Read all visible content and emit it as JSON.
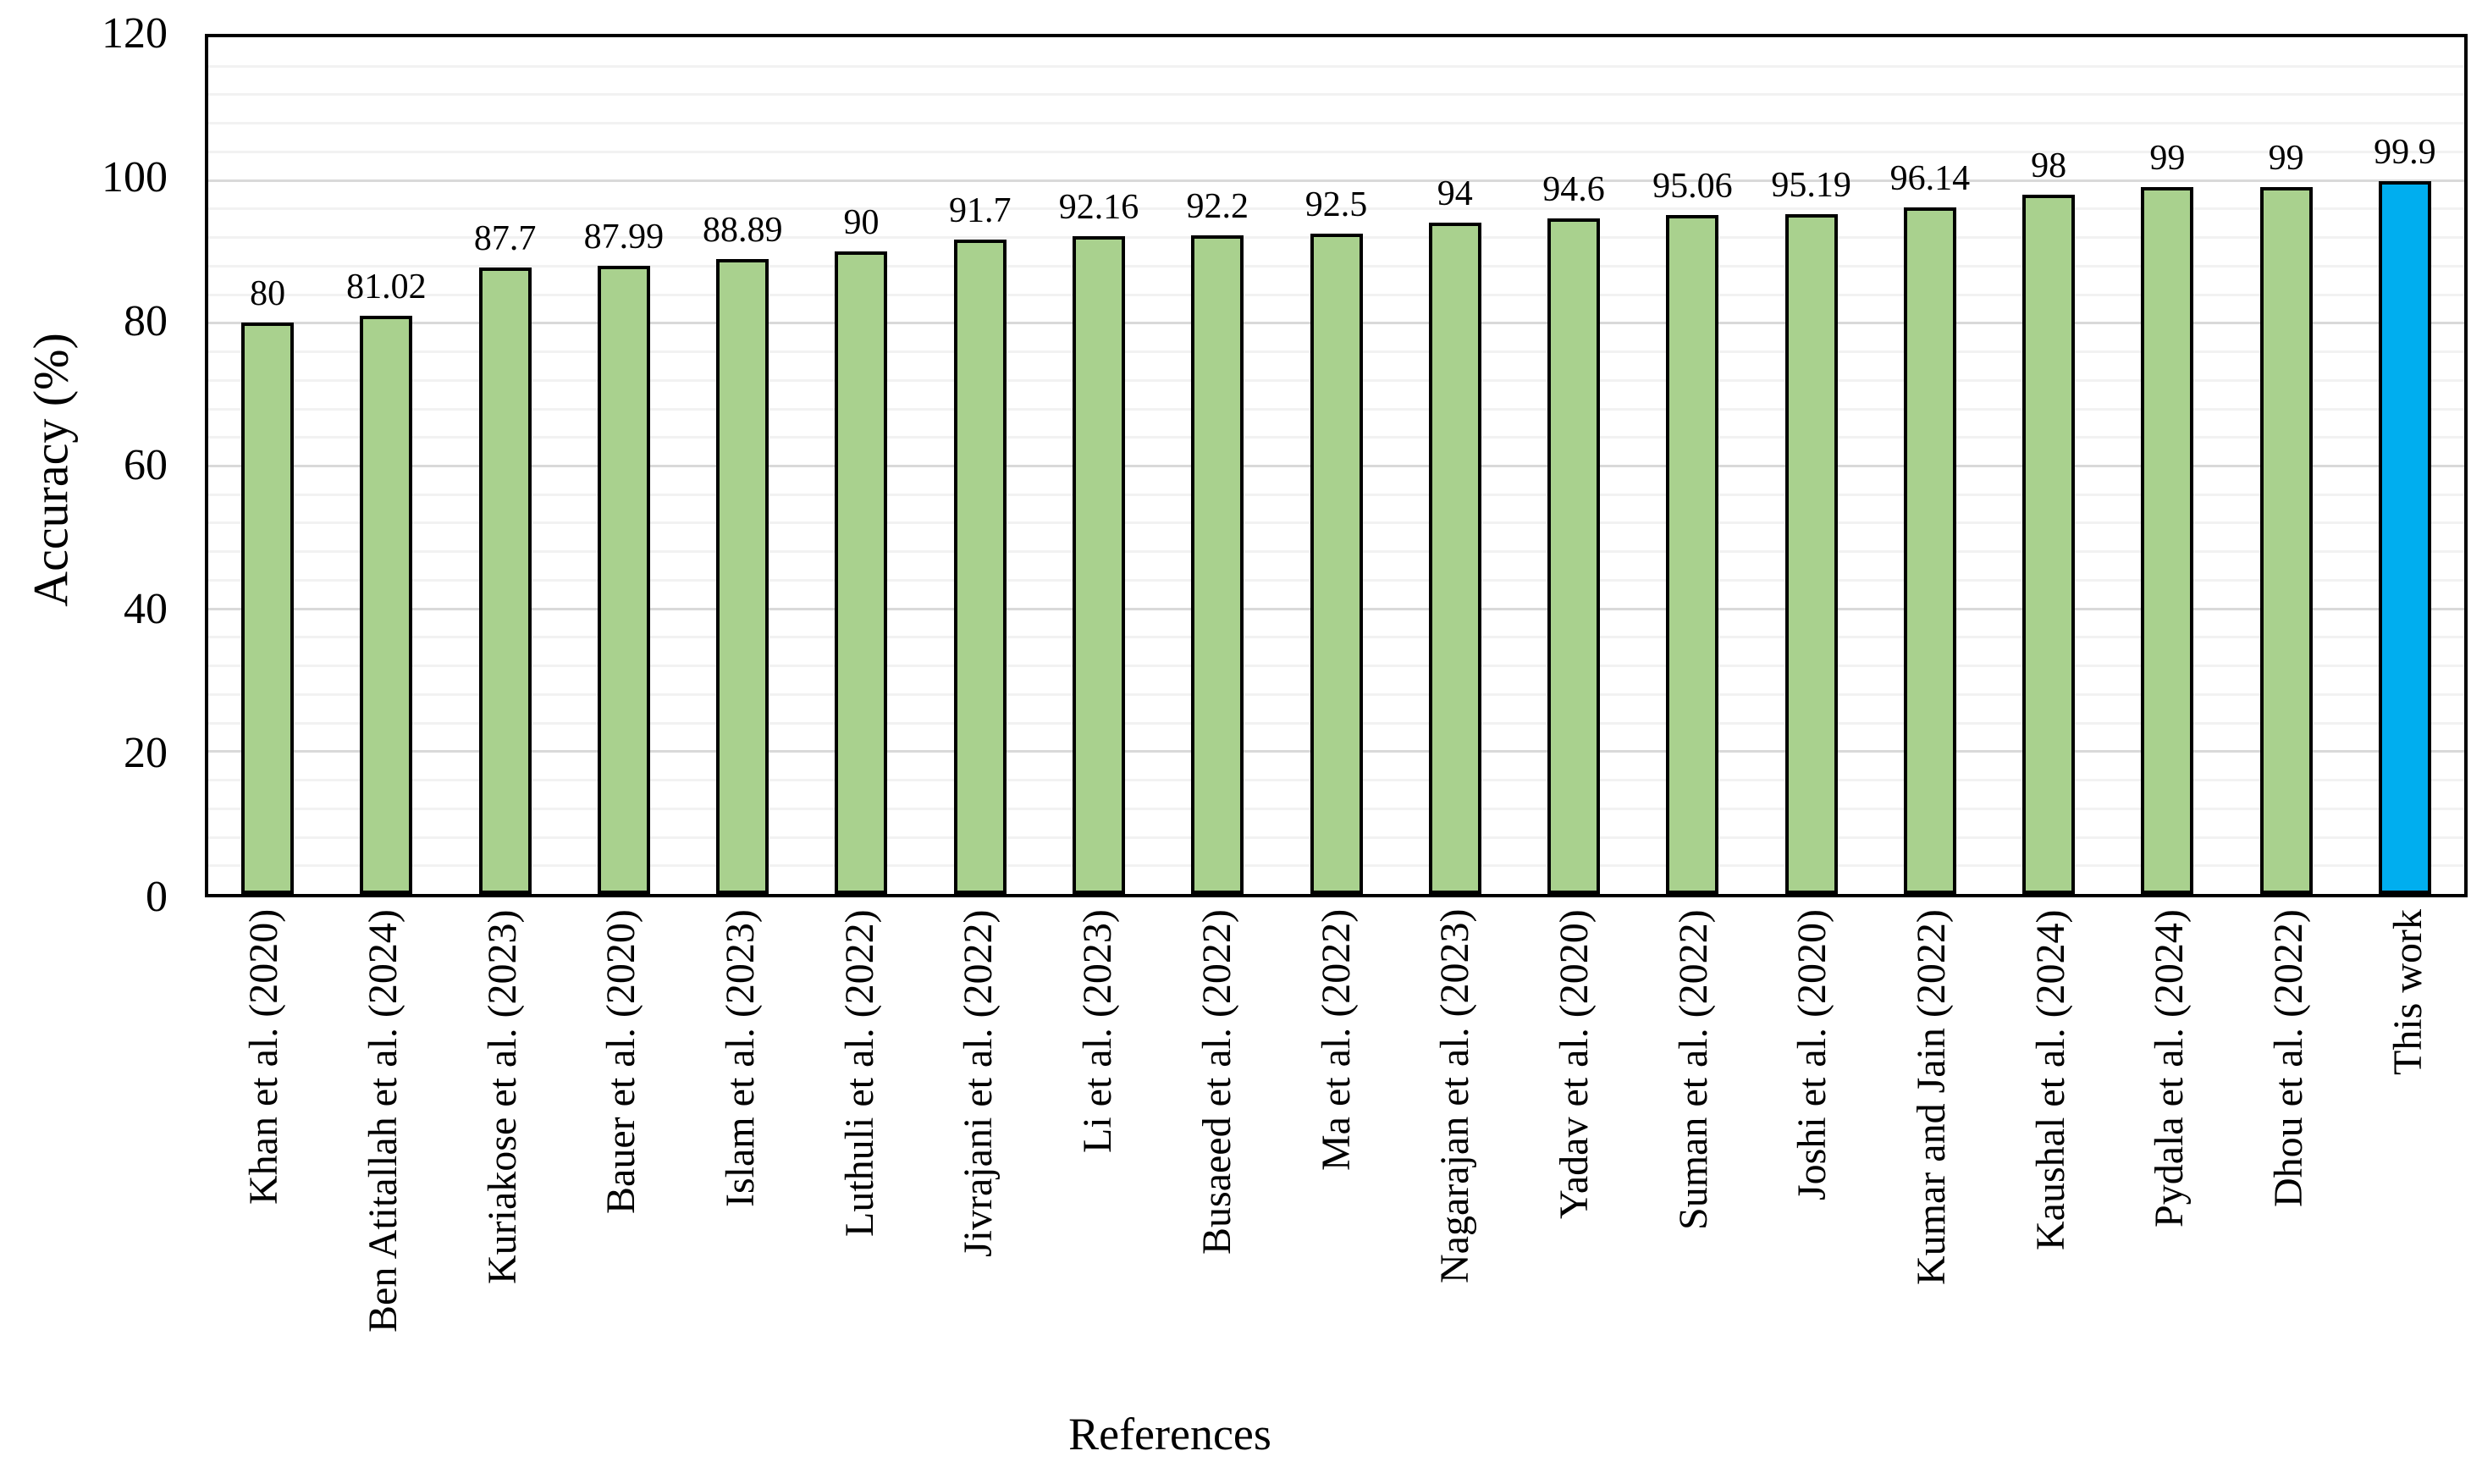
{
  "chart_data": {
    "type": "bar",
    "title": "",
    "xlabel": "References",
    "ylabel": "Accuracy (%)",
    "ylim": [
      0,
      120
    ],
    "yticks": [
      0,
      20,
      40,
      60,
      80,
      100,
      120
    ],
    "minor_grid_step": 4,
    "major_grid_step": 20,
    "grid": "on",
    "legend": "none",
    "categories": [
      "Khan et al. (2020)",
      "Ben Atitallah et al. (2024)",
      "Kuriakose et al. (2023)",
      "Bauer et al. (2020)",
      "Islam et al. (2023)",
      "Luthuli et al. (2022)",
      "Jivrajani et al. (2022)",
      "Li et al. (2023)",
      "Busaeed et al. (2022)",
      "Ma et al. (2022)",
      "Nagarajan et al. (2023)",
      "Yadav et al. (2020)",
      "Suman et al. (2022)",
      "Joshi et al. (2020)",
      "Kumar and Jain (2022)",
      "Kaushal et al. (2024)",
      "Pydala et al. (2024)",
      "Dhou et al. (2022)",
      "This work"
    ],
    "values": [
      80,
      81.02,
      87.7,
      87.99,
      88.89,
      90,
      91.7,
      92.16,
      92.2,
      92.5,
      94,
      94.6,
      95.06,
      95.19,
      96.14,
      98,
      99,
      99,
      99.9
    ],
    "value_labels": [
      "80",
      "81.02",
      "87.7",
      "87.99",
      "88.89",
      "90",
      "91.7",
      "92.16",
      "92.2",
      "92.5",
      "94",
      "94.6",
      "95.06",
      "95.19",
      "96.14",
      "98",
      "99",
      "99",
      "99.9"
    ],
    "colors": {
      "bar_default": "#A9D18E",
      "bar_highlight": "#00AEEF",
      "bar_border": "#000000",
      "grid_minor": "#F2F2F2",
      "grid_major": "#D9D9D9",
      "axis": "#000000"
    },
    "highlight_index": 18
  }
}
